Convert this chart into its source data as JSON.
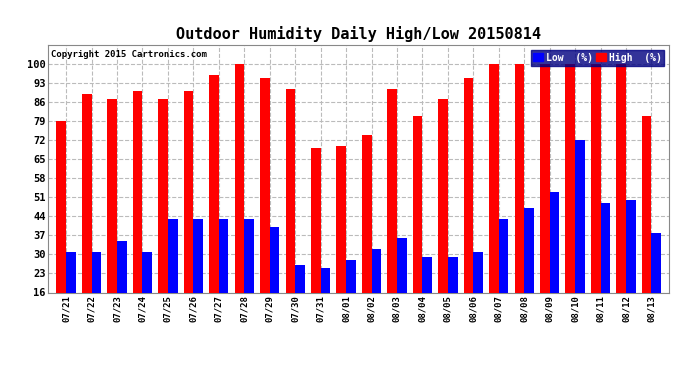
{
  "title": "Outdoor Humidity Daily High/Low 20150814",
  "copyright": "Copyright 2015 Cartronics.com",
  "categories": [
    "07/21",
    "07/22",
    "07/23",
    "07/24",
    "07/25",
    "07/26",
    "07/27",
    "07/28",
    "07/29",
    "07/30",
    "07/31",
    "08/01",
    "08/02",
    "08/03",
    "08/04",
    "08/05",
    "08/06",
    "08/07",
    "08/08",
    "08/09",
    "08/10",
    "08/11",
    "08/12",
    "08/13"
  ],
  "high": [
    79,
    89,
    87,
    90,
    87,
    90,
    96,
    100,
    95,
    91,
    69,
    70,
    74,
    91,
    81,
    87,
    95,
    100,
    100,
    100,
    100,
    100,
    100,
    81
  ],
  "low": [
    31,
    31,
    35,
    31,
    43,
    43,
    43,
    43,
    40,
    26,
    25,
    28,
    32,
    36,
    29,
    29,
    31,
    43,
    47,
    53,
    72,
    49,
    50,
    38
  ],
  "bg_color": "#ffffff",
  "plot_bg_color": "#ffffff",
  "bar_color_high": "#ff0000",
  "bar_color_low": "#0000ff",
  "grid_color": "#bbbbbb",
  "title_fontsize": 11,
  "ylim": [
    16,
    107
  ],
  "yticks": [
    16,
    23,
    30,
    37,
    44,
    51,
    58,
    65,
    72,
    79,
    86,
    93,
    100
  ],
  "legend_labels": [
    "Low  (%)",
    "High  (%)"
  ],
  "legend_colors": [
    "#0000ff",
    "#ff0000"
  ]
}
